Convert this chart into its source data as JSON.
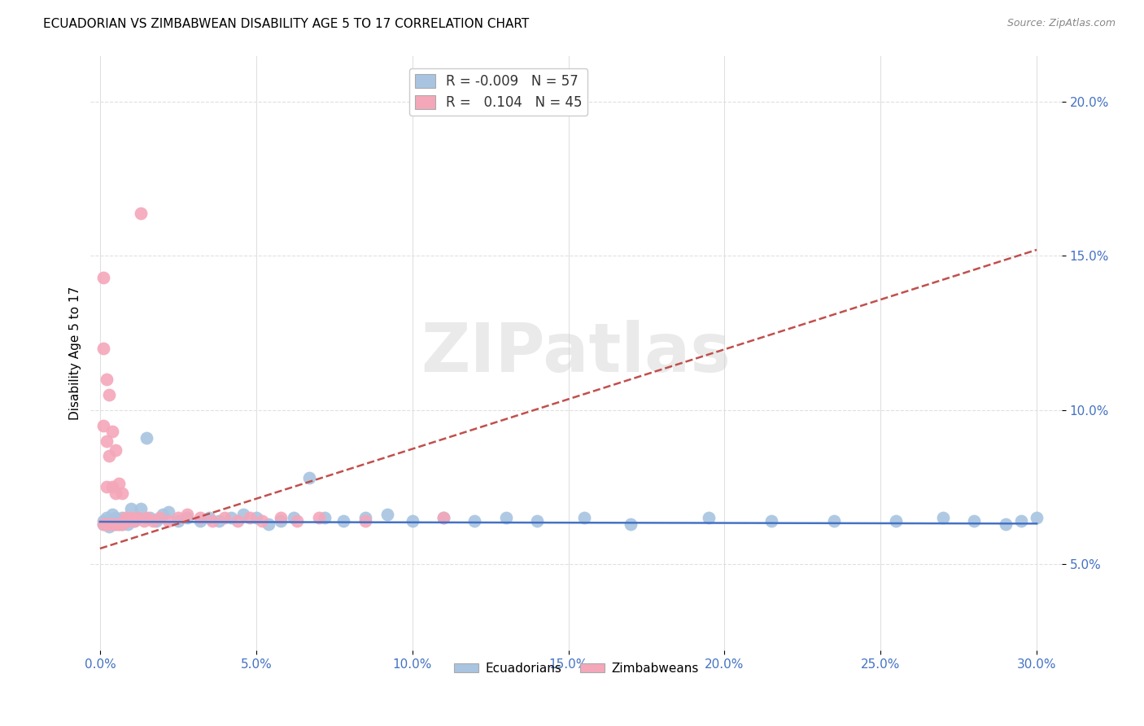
{
  "title": "ECUADORIAN VS ZIMBABWEAN DISABILITY AGE 5 TO 17 CORRELATION CHART",
  "source": "Source: ZipAtlas.com",
  "ylabel_label": "Disability Age 5 to 17",
  "xlim": [
    -0.003,
    0.308
  ],
  "ylim": [
    0.022,
    0.215
  ],
  "x_ticks": [
    0.0,
    0.05,
    0.1,
    0.15,
    0.2,
    0.25,
    0.3
  ],
  "y_ticks": [
    0.05,
    0.1,
    0.15,
    0.2
  ],
  "legend_r_ecu": "-0.009",
  "legend_n_ecu": "57",
  "legend_r_zim": "0.104",
  "legend_n_zim": "45",
  "ecu_color": "#a8c4e0",
  "zim_color": "#f4a7b9",
  "ecu_line_color": "#4472c4",
  "zim_line_color": "#c0504d",
  "zim_line_color_dashed": "#c0504d",
  "watermark": "ZIPatlas",
  "tick_color": "#4472c4",
  "grid_color": "#e0e0e0",
  "ecu_x": [
    0.001,
    0.001,
    0.002,
    0.002,
    0.003,
    0.003,
    0.004,
    0.004,
    0.005,
    0.005,
    0.006,
    0.006,
    0.007,
    0.007,
    0.008,
    0.009,
    0.01,
    0.011,
    0.012,
    0.013,
    0.015,
    0.016,
    0.018,
    0.02,
    0.022,
    0.025,
    0.028,
    0.032,
    0.035,
    0.038,
    0.042,
    0.046,
    0.05,
    0.054,
    0.058,
    0.062,
    0.067,
    0.072,
    0.078,
    0.085,
    0.092,
    0.1,
    0.11,
    0.12,
    0.13,
    0.14,
    0.155,
    0.17,
    0.195,
    0.215,
    0.235,
    0.255,
    0.27,
    0.28,
    0.29,
    0.295,
    0.3
  ],
  "ecu_y": [
    0.064,
    0.063,
    0.065,
    0.063,
    0.064,
    0.062,
    0.066,
    0.063,
    0.065,
    0.063,
    0.064,
    0.063,
    0.065,
    0.063,
    0.064,
    0.063,
    0.068,
    0.064,
    0.065,
    0.068,
    0.091,
    0.065,
    0.064,
    0.066,
    0.067,
    0.064,
    0.065,
    0.064,
    0.065,
    0.064,
    0.065,
    0.066,
    0.065,
    0.063,
    0.064,
    0.065,
    0.078,
    0.065,
    0.064,
    0.065,
    0.066,
    0.064,
    0.065,
    0.064,
    0.065,
    0.064,
    0.065,
    0.063,
    0.065,
    0.064,
    0.064,
    0.064,
    0.065,
    0.064,
    0.063,
    0.064,
    0.065
  ],
  "zim_x": [
    0.001,
    0.001,
    0.001,
    0.001,
    0.002,
    0.002,
    0.002,
    0.002,
    0.003,
    0.003,
    0.003,
    0.004,
    0.004,
    0.004,
    0.005,
    0.005,
    0.005,
    0.006,
    0.006,
    0.007,
    0.007,
    0.008,
    0.009,
    0.01,
    0.011,
    0.012,
    0.013,
    0.014,
    0.015,
    0.017,
    0.019,
    0.022,
    0.025,
    0.028,
    0.032,
    0.036,
    0.04,
    0.044,
    0.048,
    0.052,
    0.058,
    0.063,
    0.07,
    0.085,
    0.11
  ],
  "zim_y": [
    0.143,
    0.12,
    0.095,
    0.063,
    0.11,
    0.09,
    0.075,
    0.063,
    0.105,
    0.085,
    0.063,
    0.093,
    0.075,
    0.063,
    0.087,
    0.073,
    0.063,
    0.076,
    0.063,
    0.073,
    0.063,
    0.065,
    0.064,
    0.065,
    0.064,
    0.065,
    0.164,
    0.064,
    0.065,
    0.064,
    0.065,
    0.064,
    0.065,
    0.066,
    0.065,
    0.064,
    0.065,
    0.064,
    0.065,
    0.064,
    0.065,
    0.064,
    0.065,
    0.064,
    0.065
  ],
  "ecu_line_x": [
    0.0,
    0.3
  ],
  "ecu_line_y": [
    0.0637,
    0.0631
  ],
  "zim_line_x": [
    0.0,
    0.3
  ],
  "zim_line_y": [
    0.055,
    0.152
  ]
}
